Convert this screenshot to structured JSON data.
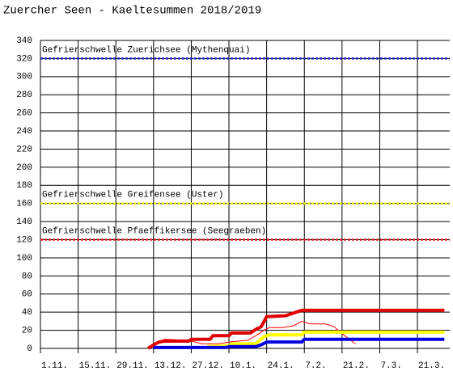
{
  "chart_data": {
    "type": "line",
    "title": "Zuercher Seen - Kaeltesummen 2018/2019",
    "xlim": [
      0,
      152
    ],
    "xticks": [
      {
        "value": 0,
        "label": "1.11."
      },
      {
        "value": 14,
        "label": "15.11."
      },
      {
        "value": 28,
        "label": "29.11."
      },
      {
        "value": 42,
        "label": "13.12."
      },
      {
        "value": 56,
        "label": "27.12."
      },
      {
        "value": 70,
        "label": "10.1."
      },
      {
        "value": 84,
        "label": "24.1."
      },
      {
        "value": 98,
        "label": "7.2."
      },
      {
        "value": 112,
        "label": "21.2."
      },
      {
        "value": 126,
        "label": "7.3."
      },
      {
        "value": 140,
        "label": "21.3."
      }
    ],
    "ylim": [
      0,
      340
    ],
    "yticks": [
      0,
      20,
      40,
      60,
      80,
      100,
      120,
      140,
      160,
      180,
      200,
      220,
      240,
      260,
      280,
      300,
      320,
      340
    ],
    "grid": true,
    "thresholds": [
      {
        "label": "Gefrierschwelle Zuerichsee (Mythenquai)",
        "value": 320,
        "color": "#2020c0"
      },
      {
        "label": "Gefrierschwelle Greifensee (Uster)",
        "value": 160,
        "color": "#f0f000"
      },
      {
        "label": "Gefrierschwelle Pfaeffikersee (Seegraeben)",
        "value": 120,
        "color": "#e02020"
      }
    ],
    "series": [
      {
        "color": "#ff0000",
        "width": 1,
        "x": [
          40,
          43,
          46,
          55,
          60,
          66,
          70,
          77,
          80,
          83,
          85,
          90,
          94,
          97,
          100,
          106,
          109,
          113,
          117
        ],
        "values": [
          0,
          6,
          10,
          9,
          5,
          5,
          7,
          9,
          14,
          20,
          23,
          23,
          25,
          30,
          27,
          27,
          24,
          14,
          5
        ]
      },
      {
        "color": "#ffff00",
        "width": 4,
        "x": [
          62,
          70,
          71,
          80,
          81,
          83,
          85,
          97,
          98,
          150
        ],
        "values": [
          2,
          3,
          5,
          5,
          8,
          13,
          15,
          15,
          18,
          18
        ]
      },
      {
        "color": "#e00000",
        "width": 4,
        "x": [
          40,
          42,
          44,
          46,
          55,
          56,
          63,
          64,
          70,
          71,
          78,
          80,
          82,
          84,
          91,
          97,
          150
        ],
        "values": [
          0,
          4,
          7,
          8,
          8,
          10,
          10,
          14,
          14,
          17,
          17,
          21,
          24,
          35,
          36,
          42,
          42
        ]
      },
      {
        "color": "#0000e0",
        "width": 4,
        "x": [
          42,
          69,
          70,
          80,
          82,
          84,
          97,
          98,
          150
        ],
        "values": [
          1,
          1,
          2,
          2,
          4,
          7,
          7,
          10,
          10
        ]
      }
    ]
  }
}
